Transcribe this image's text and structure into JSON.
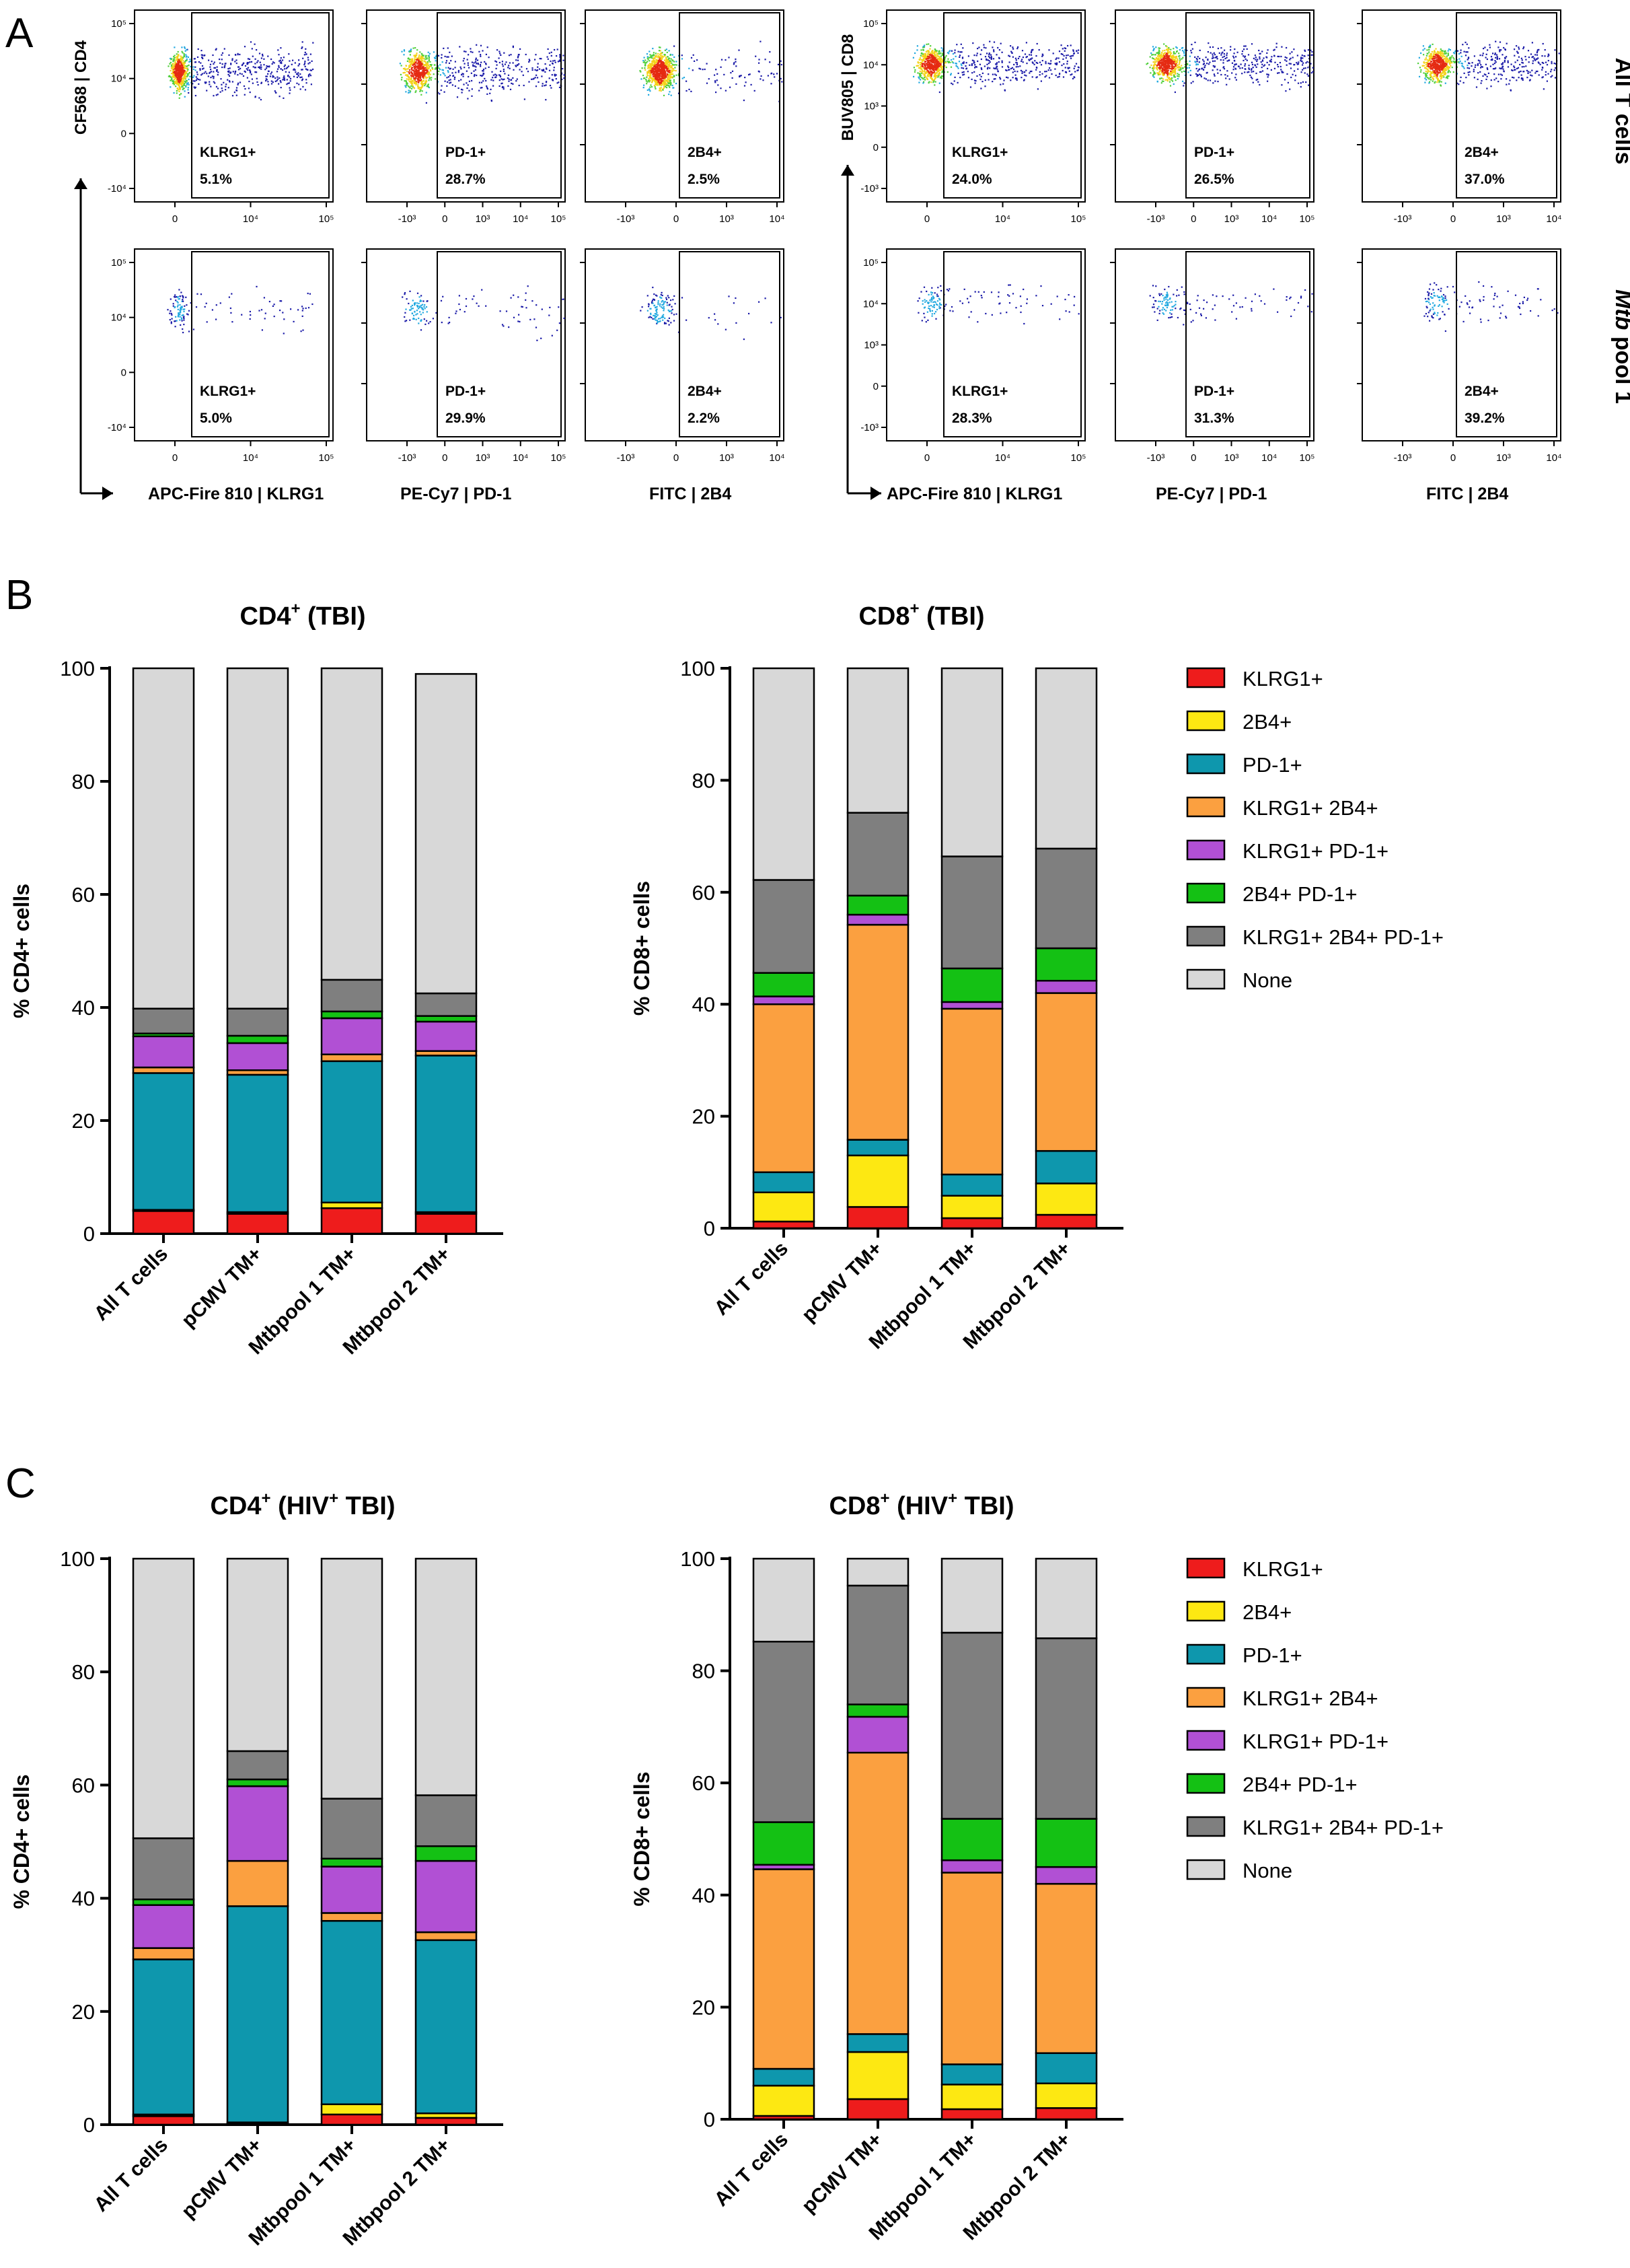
{
  "panel_labels": {
    "a": "A",
    "b": "B",
    "c": "C"
  },
  "colors": {
    "KLRG1": "#ee1c1c",
    "2B4": "#fde812",
    "PD1": "#0e97ad",
    "KLRG1_2B4": "#fba040",
    "KLRG1_PD1": "#b150d4",
    "2B4_PD1": "#14c114",
    "triple": "#7f7f7f",
    "none": "#d8d8d8",
    "axis": "#000000"
  },
  "flow": {
    "row_labels": [
      "All T cells",
      "Mtb pool 1"
    ],
    "row_label_prefix_italic": "Mtb",
    "row_label_rest": " pool 1",
    "cd4_ylabel": "CF568 | CD4",
    "cd8_ylabel": "BUV805 | CD8",
    "xlabels": [
      "APC-Fire 810 | KLRG1",
      "PE-Cy7 | PD-1",
      "FITC | 2B4"
    ],
    "y_ticks_cd4": [
      "10⁵",
      "10⁴",
      "0",
      "-10⁴"
    ],
    "y_ticks_cd8": [
      "10⁵",
      "10⁴",
      "10³",
      "0",
      "-10³"
    ],
    "x_ticks": [
      [
        "0",
        "10⁴",
        "10⁵"
      ],
      [
        "-10³",
        "0",
        "10³",
        "10⁴",
        "10⁵"
      ],
      [
        "-10³",
        "0",
        "10³",
        "10⁴"
      ]
    ],
    "gate_names": [
      "KLRG1+",
      "PD-1+",
      "2B4+"
    ],
    "gates": {
      "cd4_all": [
        "5.1%",
        "28.7%",
        "2.5%"
      ],
      "cd8_all": [
        "24.0%",
        "26.5%",
        "37.0%"
      ],
      "cd4_mtb": [
        "5.0%",
        "29.9%",
        "2.2%"
      ],
      "cd8_mtb": [
        "28.3%",
        "31.3%",
        "39.2%"
      ]
    }
  },
  "chart_data": [
    {
      "type": "bar",
      "stacked": true,
      "title": "CD4+ (TBI)",
      "title_main": "CD4",
      "title_sup": "+",
      "title_rest": " (TBI)",
      "ylabel": "% CD4+ cells",
      "ylim": [
        0,
        100
      ],
      "yticks": [
        0,
        20,
        40,
        60,
        80,
        100
      ],
      "categories": [
        "All T cells",
        "pCMV TM+",
        "Mtbpool 1 TM+",
        "Mtbpool 2 TM+"
      ],
      "series": [
        {
          "name": "KLRG1+",
          "values": [
            4.0,
            3.5,
            4.5,
            3.5
          ]
        },
        {
          "name": "2B4+",
          "values": [
            0.2,
            0.3,
            1.0,
            0.3
          ]
        },
        {
          "name": "PD-1+",
          "values": [
            24.2,
            24.3,
            25.0,
            27.7
          ]
        },
        {
          "name": "KLRG1+ 2B4+",
          "values": [
            1.0,
            0.8,
            1.2,
            0.8
          ]
        },
        {
          "name": "KLRG1+ PD-1+",
          "values": [
            5.5,
            4.8,
            6.4,
            5.2
          ]
        },
        {
          "name": "2B4+ PD-1+",
          "values": [
            0.5,
            1.3,
            1.2,
            1.0
          ]
        },
        {
          "name": "KLRG1+ 2B4+ PD-1+",
          "values": [
            4.4,
            4.8,
            5.6,
            4.0
          ]
        },
        {
          "name": "None",
          "values": [
            60.2,
            60.2,
            55.1,
            56.5
          ]
        }
      ]
    },
    {
      "type": "bar",
      "stacked": true,
      "title": "CD8+ (TBI)",
      "title_main": "CD8",
      "title_sup": "+",
      "title_rest": " (TBI)",
      "ylabel": "% CD8+ cells",
      "ylim": [
        0,
        100
      ],
      "yticks": [
        0,
        20,
        40,
        60,
        80,
        100
      ],
      "categories": [
        "All T cells",
        "pCMV TM+",
        "Mtbpool 1 TM+",
        "Mtbpool 2 TM+"
      ],
      "series": [
        {
          "name": "KLRG1+",
          "values": [
            1.2,
            3.8,
            1.8,
            2.4
          ]
        },
        {
          "name": "2B4+",
          "values": [
            5.2,
            9.2,
            4.0,
            5.6
          ]
        },
        {
          "name": "PD-1+",
          "values": [
            3.6,
            2.8,
            3.8,
            5.8
          ]
        },
        {
          "name": "KLRG1+ 2B4+",
          "values": [
            30.0,
            38.4,
            29.6,
            28.2
          ]
        },
        {
          "name": "KLRG1+ PD-1+",
          "values": [
            1.4,
            1.8,
            1.2,
            2.2
          ]
        },
        {
          "name": "2B4+ PD-1+",
          "values": [
            4.2,
            3.4,
            6.0,
            5.8
          ]
        },
        {
          "name": "KLRG1+ 2B4+ PD-1+",
          "values": [
            16.6,
            14.8,
            20.0,
            17.8
          ]
        },
        {
          "name": "None",
          "values": [
            37.8,
            25.8,
            33.6,
            32.2
          ]
        }
      ]
    },
    {
      "type": "bar",
      "stacked": true,
      "title": "CD4+ (HIV+ TBI)",
      "title_main": "CD4",
      "title_sup": "+",
      "title_mid": " (HIV",
      "title_sup2": "+",
      "title_rest": " TBI)",
      "ylabel": "% CD4+ cells",
      "ylim": [
        0,
        100
      ],
      "yticks": [
        0,
        20,
        40,
        60,
        80,
        100
      ],
      "categories": [
        "All T cells",
        "pCMV TM+",
        "Mtbpool 1 TM+",
        "Mtbpool 2 TM+"
      ],
      "series": [
        {
          "name": "KLRG1+",
          "values": [
            1.5,
            0.2,
            1.8,
            1.2
          ]
        },
        {
          "name": "2B4+",
          "values": [
            0.3,
            0.2,
            1.8,
            0.8
          ]
        },
        {
          "name": "PD-1+",
          "values": [
            27.4,
            38.2,
            32.4,
            30.6
          ]
        },
        {
          "name": "KLRG1+ 2B4+",
          "values": [
            2.0,
            8.0,
            1.4,
            1.4
          ]
        },
        {
          "name": "KLRG1+ PD-1+",
          "values": [
            7.6,
            13.2,
            8.2,
            12.6
          ]
        },
        {
          "name": "2B4+ PD-1+",
          "values": [
            1.0,
            1.2,
            1.4,
            2.6
          ]
        },
        {
          "name": "KLRG1+ 2B4+ PD-1+",
          "values": [
            10.8,
            5.0,
            10.6,
            9.0
          ]
        },
        {
          "name": "None",
          "values": [
            49.4,
            34.0,
            42.4,
            41.8
          ]
        }
      ]
    },
    {
      "type": "bar",
      "stacked": true,
      "title": "CD8+ (HIV+ TBI)",
      "title_main": "CD8",
      "title_sup": "+",
      "title_mid": " (HIV",
      "title_sup2": "+",
      "title_rest": " TBI)",
      "ylabel": "% CD8+ cells",
      "ylim": [
        0,
        100
      ],
      "yticks": [
        0,
        20,
        40,
        60,
        80,
        100
      ],
      "categories": [
        "All T cells",
        "pCMV TM+",
        "Mtbpool 1 TM+",
        "Mtbpool 2 TM+"
      ],
      "series": [
        {
          "name": "KLRG1+",
          "values": [
            0.6,
            3.6,
            1.8,
            2.0
          ]
        },
        {
          "name": "2B4+",
          "values": [
            5.4,
            8.4,
            4.4,
            4.4
          ]
        },
        {
          "name": "PD-1+",
          "values": [
            3.0,
            3.2,
            3.6,
            5.4
          ]
        },
        {
          "name": "KLRG1+ 2B4+",
          "values": [
            35.6,
            50.2,
            34.2,
            30.2
          ]
        },
        {
          "name": "KLRG1+ PD-1+",
          "values": [
            0.8,
            6.4,
            2.2,
            3.0
          ]
        },
        {
          "name": "2B4+ PD-1+",
          "values": [
            7.6,
            2.2,
            7.4,
            8.6
          ]
        },
        {
          "name": "KLRG1+ 2B4+ PD-1+",
          "values": [
            32.2,
            21.2,
            33.2,
            32.2
          ]
        },
        {
          "name": "None",
          "values": [
            14.8,
            4.8,
            13.2,
            14.2
          ]
        }
      ]
    }
  ]
}
